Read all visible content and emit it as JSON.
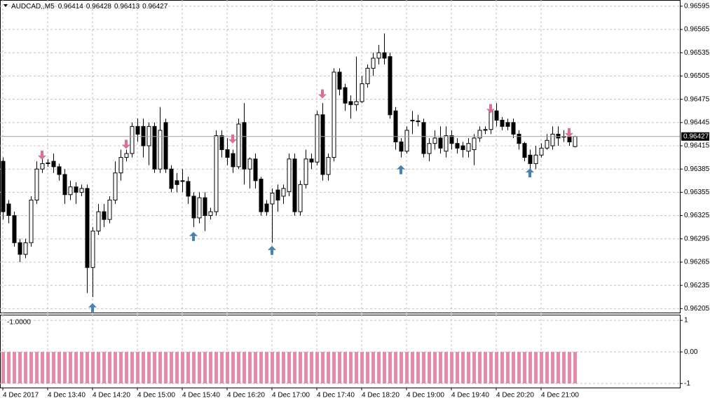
{
  "chart_data": [
    {
      "type": "candlestick",
      "symbol": "AUDCAD,,M5",
      "categories": [
        "4 Dec 2017",
        null,
        null,
        null,
        null,
        null,
        null,
        null,
        "4 Dec 13:40",
        null,
        null,
        null,
        null,
        null,
        null,
        null,
        "4 Dec 14:20",
        null,
        null,
        null,
        null,
        null,
        null,
        null,
        "4 Dec 15:00",
        null,
        null,
        null,
        null,
        null,
        null,
        null,
        "4 Dec 15:40",
        null,
        null,
        null,
        null,
        null,
        null,
        null,
        "4 Dec 16:20",
        null,
        null,
        null,
        null,
        null,
        null,
        null,
        "4 Dec 17:00",
        null,
        null,
        null,
        null,
        null,
        null,
        null,
        "4 Dec 17:40",
        null,
        null,
        null,
        null,
        null,
        null,
        null,
        "4 Dec 18:20",
        null,
        null,
        null,
        null,
        null,
        null,
        null,
        "4 Dec 19:00",
        null,
        null,
        null,
        null,
        null,
        null,
        null,
        "4 Dec 19:40",
        null,
        null,
        null,
        null,
        null,
        null,
        null,
        "4 Dec 20:20",
        null,
        null,
        null,
        null,
        null,
        null,
        null,
        "4 Dec 21:00",
        null,
        null,
        null,
        null,
        null,
        null
      ],
      "open": [
        0.96395,
        0.9634,
        0.96325,
        0.9629,
        0.96275,
        0.9629,
        0.96345,
        0.96385,
        0.96393,
        0.96395,
        0.96388,
        0.96378,
        0.96352,
        0.96362,
        0.96355,
        0.9636,
        0.96258,
        0.96305,
        0.9633,
        0.9632,
        0.96345,
        0.9638,
        0.964,
        0.96405,
        0.9644,
        0.9644,
        0.96415,
        0.9644,
        0.96385,
        0.96445,
        0.96385,
        0.9637,
        0.9637,
        0.96369,
        0.9635,
        0.96322,
        0.96348,
        0.96325,
        0.9633,
        0.96428,
        0.9641,
        0.96405,
        0.96388,
        0.96445,
        0.96385,
        0.96398,
        0.96372,
        0.9634,
        0.9634,
        0.96358,
        0.9635,
        0.96356,
        0.96398,
        0.9633,
        0.96365,
        0.96398,
        0.96394,
        0.96455,
        0.96378,
        0.964,
        0.9651,
        0.9649,
        0.96472,
        0.96468,
        0.96472,
        0.96495,
        0.96515,
        0.96528,
        0.96535,
        0.9653,
        0.9646,
        0.9642,
        0.96408,
        0.96448,
        0.96447,
        0.96445,
        0.96405,
        0.96418,
        0.96425,
        0.96408,
        0.96428,
        0.96418,
        0.96415,
        0.96408,
        0.9641,
        0.96425,
        0.96435,
        0.96436,
        0.9646,
        0.96448,
        0.96445,
        0.96445,
        0.9643,
        0.96418,
        0.96403,
        0.96392,
        0.96403,
        0.96412,
        0.96415,
        0.9643,
        0.96427,
        0.96427,
        0.96414
      ],
      "high": [
        0.964,
        0.96345,
        0.9633,
        0.96295,
        0.96295,
        0.9635,
        0.96395,
        0.964,
        0.96398,
        0.96405,
        0.96392,
        0.96385,
        0.9637,
        0.96368,
        0.96365,
        0.96365,
        0.9631,
        0.9634,
        0.9634,
        0.9635,
        0.96395,
        0.9641,
        0.9641,
        0.96445,
        0.9645,
        0.9645,
        0.96445,
        0.96445,
        0.96465,
        0.9645,
        0.9639,
        0.9638,
        0.96385,
        0.96375,
        0.96355,
        0.96355,
        0.96355,
        0.96335,
        0.96435,
        0.96435,
        0.96425,
        0.9641,
        0.9645,
        0.9647,
        0.964,
        0.96405,
        0.96375,
        0.96345,
        0.9636,
        0.96365,
        0.96365,
        0.96405,
        0.96405,
        0.9637,
        0.9641,
        0.96405,
        0.9646,
        0.9647,
        0.96405,
        0.96515,
        0.96515,
        0.96495,
        0.9648,
        0.9653,
        0.96505,
        0.9652,
        0.96535,
        0.96545,
        0.9656,
        0.96535,
        0.96465,
        0.96425,
        0.9644,
        0.9646,
        0.96455,
        0.9645,
        0.96425,
        0.96435,
        0.9644,
        0.9644,
        0.96435,
        0.96425,
        0.9642,
        0.96425,
        0.9643,
        0.9644,
        0.9644,
        0.96465,
        0.9647,
        0.96452,
        0.9645,
        0.9645,
        0.96435,
        0.9642,
        0.9641,
        0.96415,
        0.96418,
        0.9643,
        0.9644,
        0.9644,
        0.96435,
        0.9643,
        0.96428
      ],
      "low": [
        0.9632,
        0.96315,
        0.96285,
        0.96265,
        0.9627,
        0.96285,
        0.9634,
        0.9638,
        0.96388,
        0.9638,
        0.9637,
        0.9634,
        0.96345,
        0.9634,
        0.9635,
        0.96225,
        0.9622,
        0.963,
        0.9631,
        0.96315,
        0.9634,
        0.9637,
        0.96395,
        0.964,
        0.9642,
        0.964,
        0.9639,
        0.9638,
        0.9638,
        0.9638,
        0.96355,
        0.96355,
        0.96355,
        0.9634,
        0.9631,
        0.96315,
        0.96305,
        0.9632,
        0.96325,
        0.964,
        0.9639,
        0.9638,
        0.96385,
        0.96365,
        0.9636,
        0.9636,
        0.96325,
        0.96325,
        0.9629,
        0.9633,
        0.9634,
        0.9635,
        0.96325,
        0.96325,
        0.9636,
        0.96385,
        0.9639,
        0.9637,
        0.9637,
        0.96395,
        0.9648,
        0.9646,
        0.9645,
        0.9646,
        0.9647,
        0.9649,
        0.96505,
        0.9652,
        0.9652,
        0.9645,
        0.9641,
        0.964,
        0.96405,
        0.9643,
        0.9644,
        0.964,
        0.96395,
        0.9641,
        0.96405,
        0.964,
        0.9641,
        0.96405,
        0.964,
        0.964,
        0.9639,
        0.9642,
        0.9643,
        0.9643,
        0.9644,
        0.96435,
        0.96435,
        0.96425,
        0.9641,
        0.96395,
        0.96385,
        0.96385,
        0.964,
        0.9641,
        0.9641,
        0.96415,
        0.9642,
        0.96415,
        0.96413
      ],
      "close": [
        0.9633,
        0.96325,
        0.9629,
        0.96275,
        0.9629,
        0.96345,
        0.96385,
        0.96392,
        0.96392,
        0.96388,
        0.96378,
        0.96352,
        0.96362,
        0.96355,
        0.9636,
        0.96258,
        0.96305,
        0.9633,
        0.9632,
        0.96345,
        0.9638,
        0.964,
        0.96405,
        0.9644,
        0.9643,
        0.96415,
        0.9644,
        0.96385,
        0.96435,
        0.96385,
        0.9636,
        0.96365,
        0.96369,
        0.9635,
        0.96322,
        0.96348,
        0.96325,
        0.9633,
        0.96428,
        0.9641,
        0.964,
        0.96388,
        0.96443,
        0.96385,
        0.96398,
        0.9637,
        0.9633,
        0.9633,
        0.96354,
        0.96345,
        0.9636,
        0.96398,
        0.9633,
        0.96365,
        0.96398,
        0.96394,
        0.96455,
        0.96378,
        0.964,
        0.9651,
        0.96488,
        0.9647,
        0.96468,
        0.96472,
        0.96495,
        0.96515,
        0.96528,
        0.96535,
        0.96528,
        0.96455,
        0.9642,
        0.96408,
        0.96435,
        0.96447,
        0.96447,
        0.96405,
        0.96418,
        0.96425,
        0.96412,
        0.96428,
        0.96418,
        0.96412,
        0.9641,
        0.96418,
        0.96425,
        0.96435,
        0.96436,
        0.9646,
        0.96448,
        0.9644,
        0.9644,
        0.9643,
        0.96418,
        0.964,
        0.96392,
        0.96403,
        0.96412,
        0.96422,
        0.9643,
        0.96425,
        0.96427,
        0.9642,
        0.96427
      ],
      "up_color": "#ffffff",
      "down_color": "#000000",
      "buy_arrows": {
        "color": "#4682b4",
        "x": [
          16,
          34,
          48,
          71,
          94
        ],
        "values": [
          0.96212,
          0.96304,
          0.96286,
          0.9639,
          0.96386
        ]
      },
      "sell_arrows": {
        "color": "#db7093",
        "x": [
          7,
          22,
          41,
          57,
          87,
          101
        ],
        "values": [
          0.96397,
          0.96411,
          0.96418,
          0.96476,
          0.96457,
          0.96426
        ]
      },
      "ylim": [
        0.96199,
        0.96603
      ],
      "yticks": [
        0.96595,
        0.96565,
        0.96535,
        0.96505,
        0.96475,
        0.96445,
        0.96415,
        0.96385,
        0.96355,
        0.96325,
        0.96295,
        0.96265,
        0.96235,
        0.96205
      ],
      "grid": true
    },
    {
      "type": "bar",
      "readout": "-1.0000",
      "color": "#e58aa6",
      "values": [
        -1,
        -1,
        -1,
        -1,
        -1,
        -1,
        -1,
        -1,
        -1,
        -1,
        -1,
        -1,
        -1,
        -1,
        -1,
        -1,
        -1,
        -1,
        -1,
        -1,
        -1,
        -1,
        -1,
        -1,
        -1,
        -1,
        -1,
        -1,
        -1,
        -1,
        -1,
        -1,
        -1,
        -1,
        -1,
        -1,
        -1,
        -1,
        -1,
        -1,
        -1,
        -1,
        -1,
        -1,
        -1,
        -1,
        -1,
        -1,
        -1,
        -1,
        -1,
        -1,
        -1,
        -1,
        -1,
        -1,
        -1,
        -1,
        -1,
        -1,
        -1,
        -1,
        -1,
        -1,
        -1,
        -1,
        -1,
        -1,
        -1,
        -1,
        -1,
        -1,
        -1,
        -1,
        -1,
        -1,
        -1,
        -1,
        -1,
        -1,
        -1,
        -1,
        -1,
        -1,
        -1,
        -1,
        -1,
        -1,
        -1,
        -1,
        -1,
        -1,
        -1,
        -1,
        -1,
        -1,
        -1,
        -1,
        -1,
        -1,
        -1,
        -1,
        -1
      ],
      "ylim": [
        -1.13,
        1.18
      ],
      "yticks": [
        1,
        {
          "value": 0,
          "label": "0.00"
        },
        -1
      ],
      "grid": true
    }
  ]
}
